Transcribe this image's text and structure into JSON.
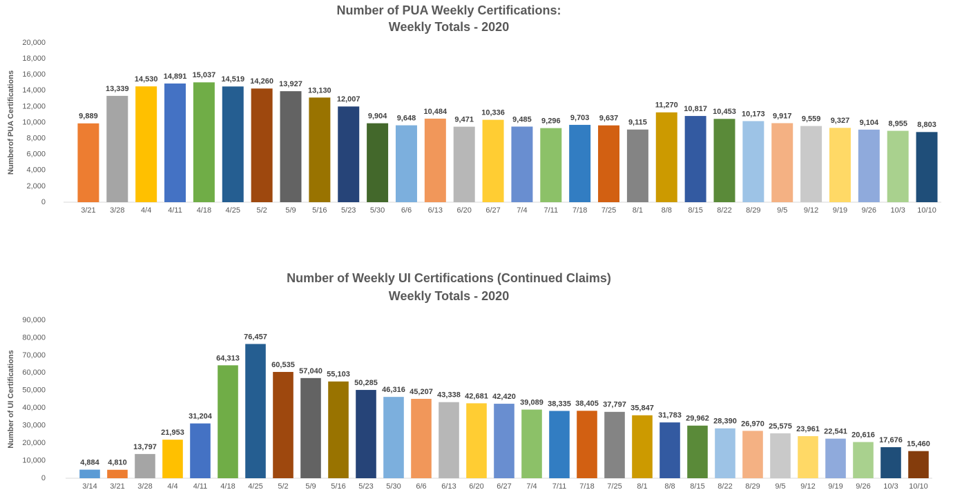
{
  "chart_data": [
    {
      "type": "bar",
      "title": "Number of PUA Weekly Certifications:",
      "subtitle": "Weekly Totals - 2020",
      "y_label": "Numberof PUA Certifications",
      "categories": [
        "3/21",
        "3/28",
        "4/4",
        "4/11",
        "4/18",
        "4/25",
        "5/2",
        "5/9",
        "5/16",
        "5/23",
        "5/30",
        "6/6",
        "6/13",
        "6/20",
        "6/27",
        "7/4",
        "7/11",
        "7/18",
        "7/25",
        "8/1",
        "8/8",
        "8/15",
        "8/22",
        "8/29",
        "9/5",
        "9/12",
        "9/19",
        "9/26",
        "10/3",
        "10/10"
      ],
      "values": [
        9889,
        13339,
        14530,
        14891,
        15037,
        14519,
        14260,
        13927,
        13130,
        12007,
        9904,
        9648,
        10484,
        9471,
        10336,
        9485,
        9296,
        9703,
        9637,
        9115,
        11270,
        10817,
        10453,
        10173,
        9917,
        9559,
        9327,
        9104,
        8955,
        8803
      ],
      "value_labels": [
        "9,889",
        "13,339",
        "14,530",
        "14,891",
        "15,037",
        "14,519",
        "14,260",
        "13,927",
        "13,130",
        "12,007",
        "9,904",
        "9,648",
        "10,484",
        "9,471",
        "10,336",
        "9,485",
        "9,296",
        "9,703",
        "9,637",
        "9,115",
        "11,270",
        "10,817",
        "10,453",
        "10,173",
        "9,917",
        "9,559",
        "9,327",
        "9,104",
        "8,955",
        "8,803"
      ],
      "colors": [
        "#ed7d31",
        "#a5a5a5",
        "#ffc000",
        "#4472c4",
        "#70ad47",
        "#255e91",
        "#9e480e",
        "#636363",
        "#997300",
        "#264478",
        "#43682b",
        "#7cafdd",
        "#f1975a",
        "#b7b7b7",
        "#ffcd33",
        "#698ed0",
        "#8cc168",
        "#327dc2",
        "#d26012",
        "#848484",
        "#cc9a00",
        "#335aa1",
        "#5a8a39",
        "#9dc3e6",
        "#f4b183",
        "#c9c9c9",
        "#ffd966",
        "#8faadc",
        "#a9d18e",
        "#1f4e79"
      ],
      "ylim": [
        0,
        20000
      ],
      "yticks": [
        0,
        {
          "value": 2000,
          "label": "2,000"
        },
        {
          "value": 4000,
          "label": "4,000"
        },
        {
          "value": 6000,
          "label": "6,000"
        },
        {
          "value": 8000,
          "label": "8,000"
        },
        {
          "value": 10000,
          "label": "10,000"
        },
        {
          "value": 12000,
          "label": "12,000"
        },
        {
          "value": 14000,
          "label": "14,000"
        },
        {
          "value": 16000,
          "label": "16,000"
        },
        {
          "value": 18000,
          "label": "18,000"
        },
        {
          "value": 20000,
          "label": "20,000"
        }
      ]
    },
    {
      "type": "bar",
      "title": "Number of Weekly UI Certifications (Continued Claims)",
      "subtitle": "Weekly Totals - 2020",
      "y_label": "Number of UI Certifications",
      "categories": [
        "3/14",
        "3/21",
        "3/28",
        "4/4",
        "4/11",
        "4/18",
        "4/25",
        "5/2",
        "5/9",
        "5/16",
        "5/23",
        "5/30",
        "6/6",
        "6/13",
        "6/20",
        "6/27",
        "7/4",
        "7/11",
        "7/18",
        "7/25",
        "8/1",
        "8/8",
        "8/15",
        "8/22",
        "8/29",
        "9/5",
        "9/12",
        "9/19",
        "9/26",
        "10/3",
        "10/10"
      ],
      "values": [
        4884,
        4810,
        13797,
        21953,
        31204,
        64313,
        76457,
        60535,
        57040,
        55103,
        50285,
        46316,
        45207,
        43338,
        42681,
        42420,
        39089,
        38335,
        38405,
        37797,
        35847,
        31783,
        29962,
        28390,
        26970,
        25575,
        23961,
        22541,
        20616,
        17676,
        15460
      ],
      "value_labels": [
        "4,884",
        "4,810",
        "13,797",
        "21,953",
        "31,204",
        "64,313",
        "76,457",
        "60,535",
        "57,040",
        "55,103",
        "50,285",
        "46,316",
        "45,207",
        "43,338",
        "42,681",
        "42,420",
        "39,089",
        "38,335",
        "38,405",
        "37,797",
        "35,847",
        "31,783",
        "29,962",
        "28,390",
        "26,970",
        "25,575",
        "23,961",
        "22,541",
        "20,616",
        "17,676",
        "15,460"
      ],
      "colors": [
        "#5b9bd5",
        "#ed7d31",
        "#a5a5a5",
        "#ffc000",
        "#4472c4",
        "#70ad47",
        "#255e91",
        "#9e480e",
        "#636363",
        "#997300",
        "#264478",
        "#7cafdd",
        "#f1975a",
        "#b7b7b7",
        "#ffcd33",
        "#698ed0",
        "#8cc168",
        "#327dc2",
        "#d26012",
        "#848484",
        "#cc9a00",
        "#335aa1",
        "#5a8a39",
        "#9dc3e6",
        "#f4b183",
        "#c9c9c9",
        "#ffd966",
        "#8faadc",
        "#a9d18e",
        "#1f4e79",
        "#843c0c"
      ],
      "ylim": [
        0,
        90000
      ],
      "yticks": [
        0,
        {
          "value": 10000,
          "label": "10,000"
        },
        {
          "value": 20000,
          "label": "20,000"
        },
        {
          "value": 30000,
          "label": "30,000"
        },
        {
          "value": 40000,
          "label": "40,000"
        },
        {
          "value": 50000,
          "label": "50,000"
        },
        {
          "value": 60000,
          "label": "60,000"
        },
        {
          "value": 70000,
          "label": "70,000"
        },
        {
          "value": 80000,
          "label": "80,000"
        },
        {
          "value": 90000,
          "label": "90,000"
        }
      ]
    }
  ]
}
